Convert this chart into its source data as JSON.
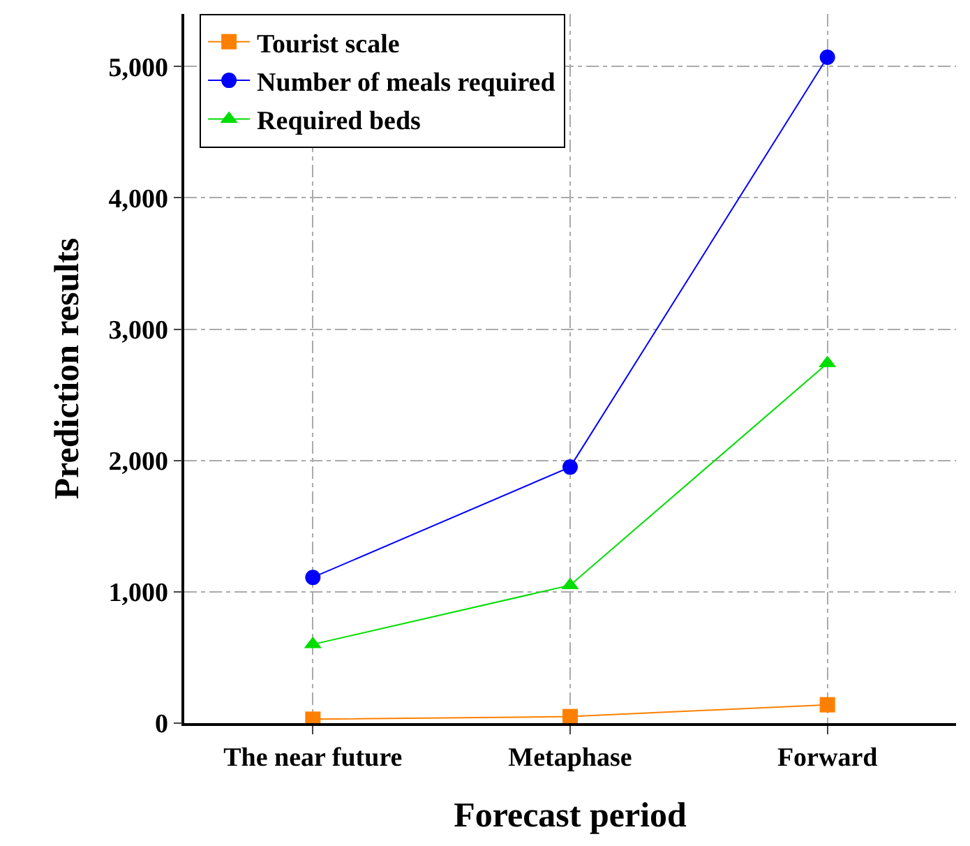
{
  "chart_data": {
    "type": "line",
    "xlabel": "Forecast period",
    "ylabel": "Prediction results",
    "categories": [
      "The near future",
      "Metaphase",
      "Forward"
    ],
    "series": [
      {
        "name": "Tourist scale",
        "color": "#ff8000",
        "marker": "square",
        "values": [
          30,
          50,
          140
        ]
      },
      {
        "name": "Number of meals required",
        "color": "#0000ff",
        "marker": "circle",
        "values": [
          1110,
          1950,
          5070
        ]
      },
      {
        "name": "Required beds",
        "color": "#00dd00",
        "marker": "triangle",
        "values": [
          600,
          1050,
          2740
        ]
      }
    ],
    "ylim": [
      0,
      5400
    ],
    "yticks": [
      {
        "value": 0,
        "label": "0"
      },
      {
        "value": 1000,
        "label": "1,000"
      },
      {
        "value": 2000,
        "label": "2,000"
      },
      {
        "value": 3000,
        "label": "3,000"
      },
      {
        "value": 4000,
        "label": "4,000"
      },
      {
        "value": 5000,
        "label": "5,000"
      }
    ],
    "grid": true,
    "legend": "top left",
    "line_style": "solid"
  }
}
